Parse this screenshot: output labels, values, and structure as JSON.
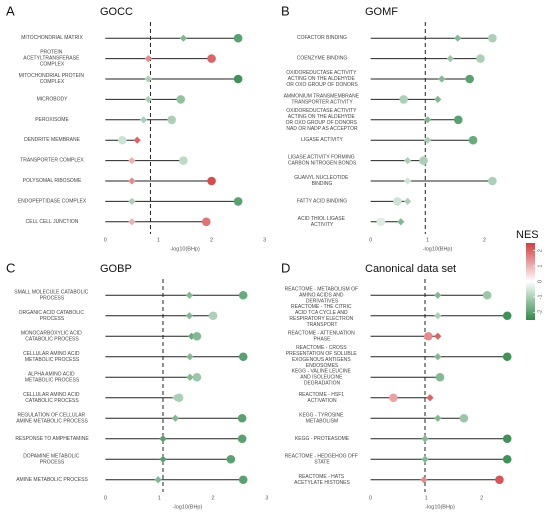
{
  "chart_data": [
    {
      "type": "lollipop",
      "panel": "A",
      "title": "GOCC",
      "x_label": "-log10(BHp)",
      "xlim": [
        -0.1,
        3.1
      ],
      "xticks": [
        0,
        1,
        2,
        3
      ],
      "threshold": 0.85,
      "categories": [
        "MITOCHONDRIAL MATRIX",
        "PROTEIN ACETYLTRANSFERASE COMPLEX",
        "MITOCHONDRIAL PROTEIN COMPLEX",
        "MICROBODY",
        "PEROXISOME",
        "DENDRITE MEMBRANE",
        "TRANSPORTER COMPLEX",
        "POLYSOMAL RIBOSOME",
        "ENDOPEPTIDASE COMPLEX",
        "CELL CELL JUNCTION"
      ],
      "diamond": [
        1.47,
        0.81,
        0.81,
        0.81,
        0.72,
        0.6,
        0.5,
        0.5,
        0.5,
        0.5
      ],
      "diamond_nes": [
        -1.5,
        1.5,
        -1,
        -1,
        -1,
        2,
        1,
        1.5,
        -1,
        1
      ],
      "circle": [
        2.5,
        2.0,
        2.5,
        1.42,
        1.25,
        0.32,
        1.47,
        2.0,
        2.5,
        1.9
      ],
      "circle_nes": [
        -2,
        2,
        -2.3,
        -1.3,
        -1,
        -0.6,
        -0.8,
        2.3,
        -2,
        1.8
      ]
    },
    {
      "type": "lollipop",
      "panel": "B",
      "title": "GOMF",
      "x_label": "-log10(BHp)",
      "xlim": [
        -0.1,
        2.45
      ],
      "xticks": [
        0,
        1,
        2
      ],
      "threshold": 0.96,
      "categories": [
        "COFACTOR BINDING",
        "COENZYME BINDING",
        "OXIDOREDUCTASE ACTIVITY ACTING ON THE ALDEHYDE OR OXO GROUP OF DONORS",
        "AMMONIUM TRANSMEMBRANE TRANSPORTER ACTIVITY",
        "OXIDOREDUCTASE ACTIVITY ACTING ON THE ALDEHYDE OR OXO GROUP OF DONORS NAD OR NADP AS ACCEPTOR",
        "LIGASE ACTIVITY",
        "LIGASE ACTIVITY FORMING CARBON NITROGEN BONDS",
        "GUANYL NUCLEOTIDE BINDING",
        "FATTY ACID BINDING",
        "ACID THIOL LIGASE ACTIVITY"
      ],
      "diamond": [
        1.53,
        1.4,
        1.25,
        1.18,
        1.0,
        1.0,
        0.65,
        0.65,
        0.65,
        0.53
      ],
      "diamond_nes": [
        -1.5,
        -1.2,
        -1.5,
        -1.5,
        -1.5,
        -1,
        -1,
        -0.6,
        -1,
        -1.5
      ],
      "circle": [
        2.14,
        1.93,
        1.74,
        0.58,
        1.54,
        1.8,
        0.93,
        2.14,
        0.47,
        0.18
      ],
      "circle_nes": [
        -1,
        -1,
        -2,
        -1,
        -2,
        -1.8,
        -1,
        -1,
        -0.6,
        -0.4
      ]
    },
    {
      "type": "lollipop",
      "panel": "C",
      "title": "GOBP",
      "x_label": "-log10(BHp)",
      "xlim": [
        -0.1,
        3.15
      ],
      "xticks": [
        0,
        1,
        2,
        3
      ],
      "threshold": 1.07,
      "categories": [
        "SMALL MOLECULE CATABOLIC PROCESS",
        "ORGANIC ACID CATABOLIC PROCESS",
        "MONOCARBOXYLIC ACID CATABOLIC PROCESS",
        "CELLULAR AMINO ACID METABOLIC PROCESS",
        "ALPHA AMINO ACID METABOLIC PROCESS",
        "CELLULAR AMINO ACID CATABOLIC PROCESS",
        "REGULATION OF CELLULAR AMINE METABOLIC PROCESS",
        "RESPONSE TO AMPHETAMINE",
        "DOPAMINE METABOLIC PROCESS",
        "AMINE METABOLIC PROCESS"
      ],
      "diamond": [
        1.56,
        1.56,
        1.6,
        1.57,
        1.57,
        1.31,
        1.3,
        1.07,
        1.07,
        0.98
      ],
      "diamond_nes": [
        -1.5,
        -1.5,
        -1.8,
        -1.5,
        -1.5,
        -1,
        -1.5,
        -2,
        -2,
        -1.5
      ],
      "circle": [
        2.56,
        2.0,
        1.7,
        2.56,
        1.7,
        1.37,
        2.54,
        2.54,
        2.33,
        2.56
      ],
      "circle_nes": [
        -1.8,
        -1,
        -1.5,
        -2,
        -1.2,
        -1,
        -2,
        -2,
        -2,
        -2
      ]
    },
    {
      "type": "lollipop",
      "panel": "D",
      "title": "Canonical data set",
      "x_label": "-log10(BHp)",
      "xlim": [
        -0.1,
        2.6
      ],
      "xticks": [
        0,
        1,
        2
      ],
      "threshold": 0.98,
      "categories": [
        "REACTOME - METABOLISM OF AMINO ACIDS AND DERIVATIVES",
        "REACTOME - THE CITRIC ACID TCA CYCLE AND RESPIRATORY ELECTRON TRANSPORT",
        "REACTOME - ATTENUATION PHASE",
        "REACTOME - CROSS PRESENTATION OF SOLUBLE EXOGENOUS ANTIGENS ENDOSOMES",
        "KEGG - VALINE LEUCINE AND ISOLEUCINE DEGRADATION",
        "REACTOME - HSF1 ACTIVATION",
        "KEGG - TYROSINE METABOLISM",
        "KEGG - PROTEASOME",
        "REACTOME - HEDGEHOG OFF STATE",
        "REACTOME - HATS ACETYLATE HISTONES"
      ],
      "diamond": [
        1.21,
        1.21,
        1.21,
        1.21,
        1.25,
        1.07,
        1.21,
        0.98,
        0.98,
        0.96
      ],
      "diamond_nes": [
        -1.5,
        -1,
        2,
        -1.5,
        -1.5,
        2,
        -1.5,
        -1.5,
        -1.5,
        1.5
      ],
      "circle": [
        2.1,
        2.46,
        1.04,
        2.46,
        1.25,
        0.41,
        1.68,
        2.46,
        2.46,
        2.32
      ],
      "circle_nes": [
        -1.2,
        -2.3,
        1.5,
        -2.3,
        -1.5,
        1.2,
        -1.2,
        -2.3,
        -2.3,
        2.2
      ]
    }
  ],
  "legend": {
    "title": "NES",
    "lim": [
      -2.5,
      2.5
    ],
    "ticks": [
      2,
      1,
      0,
      -1,
      -2
    ],
    "high": "#d43d3d",
    "mid": "#ffffff",
    "low": "#2f8a4a"
  }
}
